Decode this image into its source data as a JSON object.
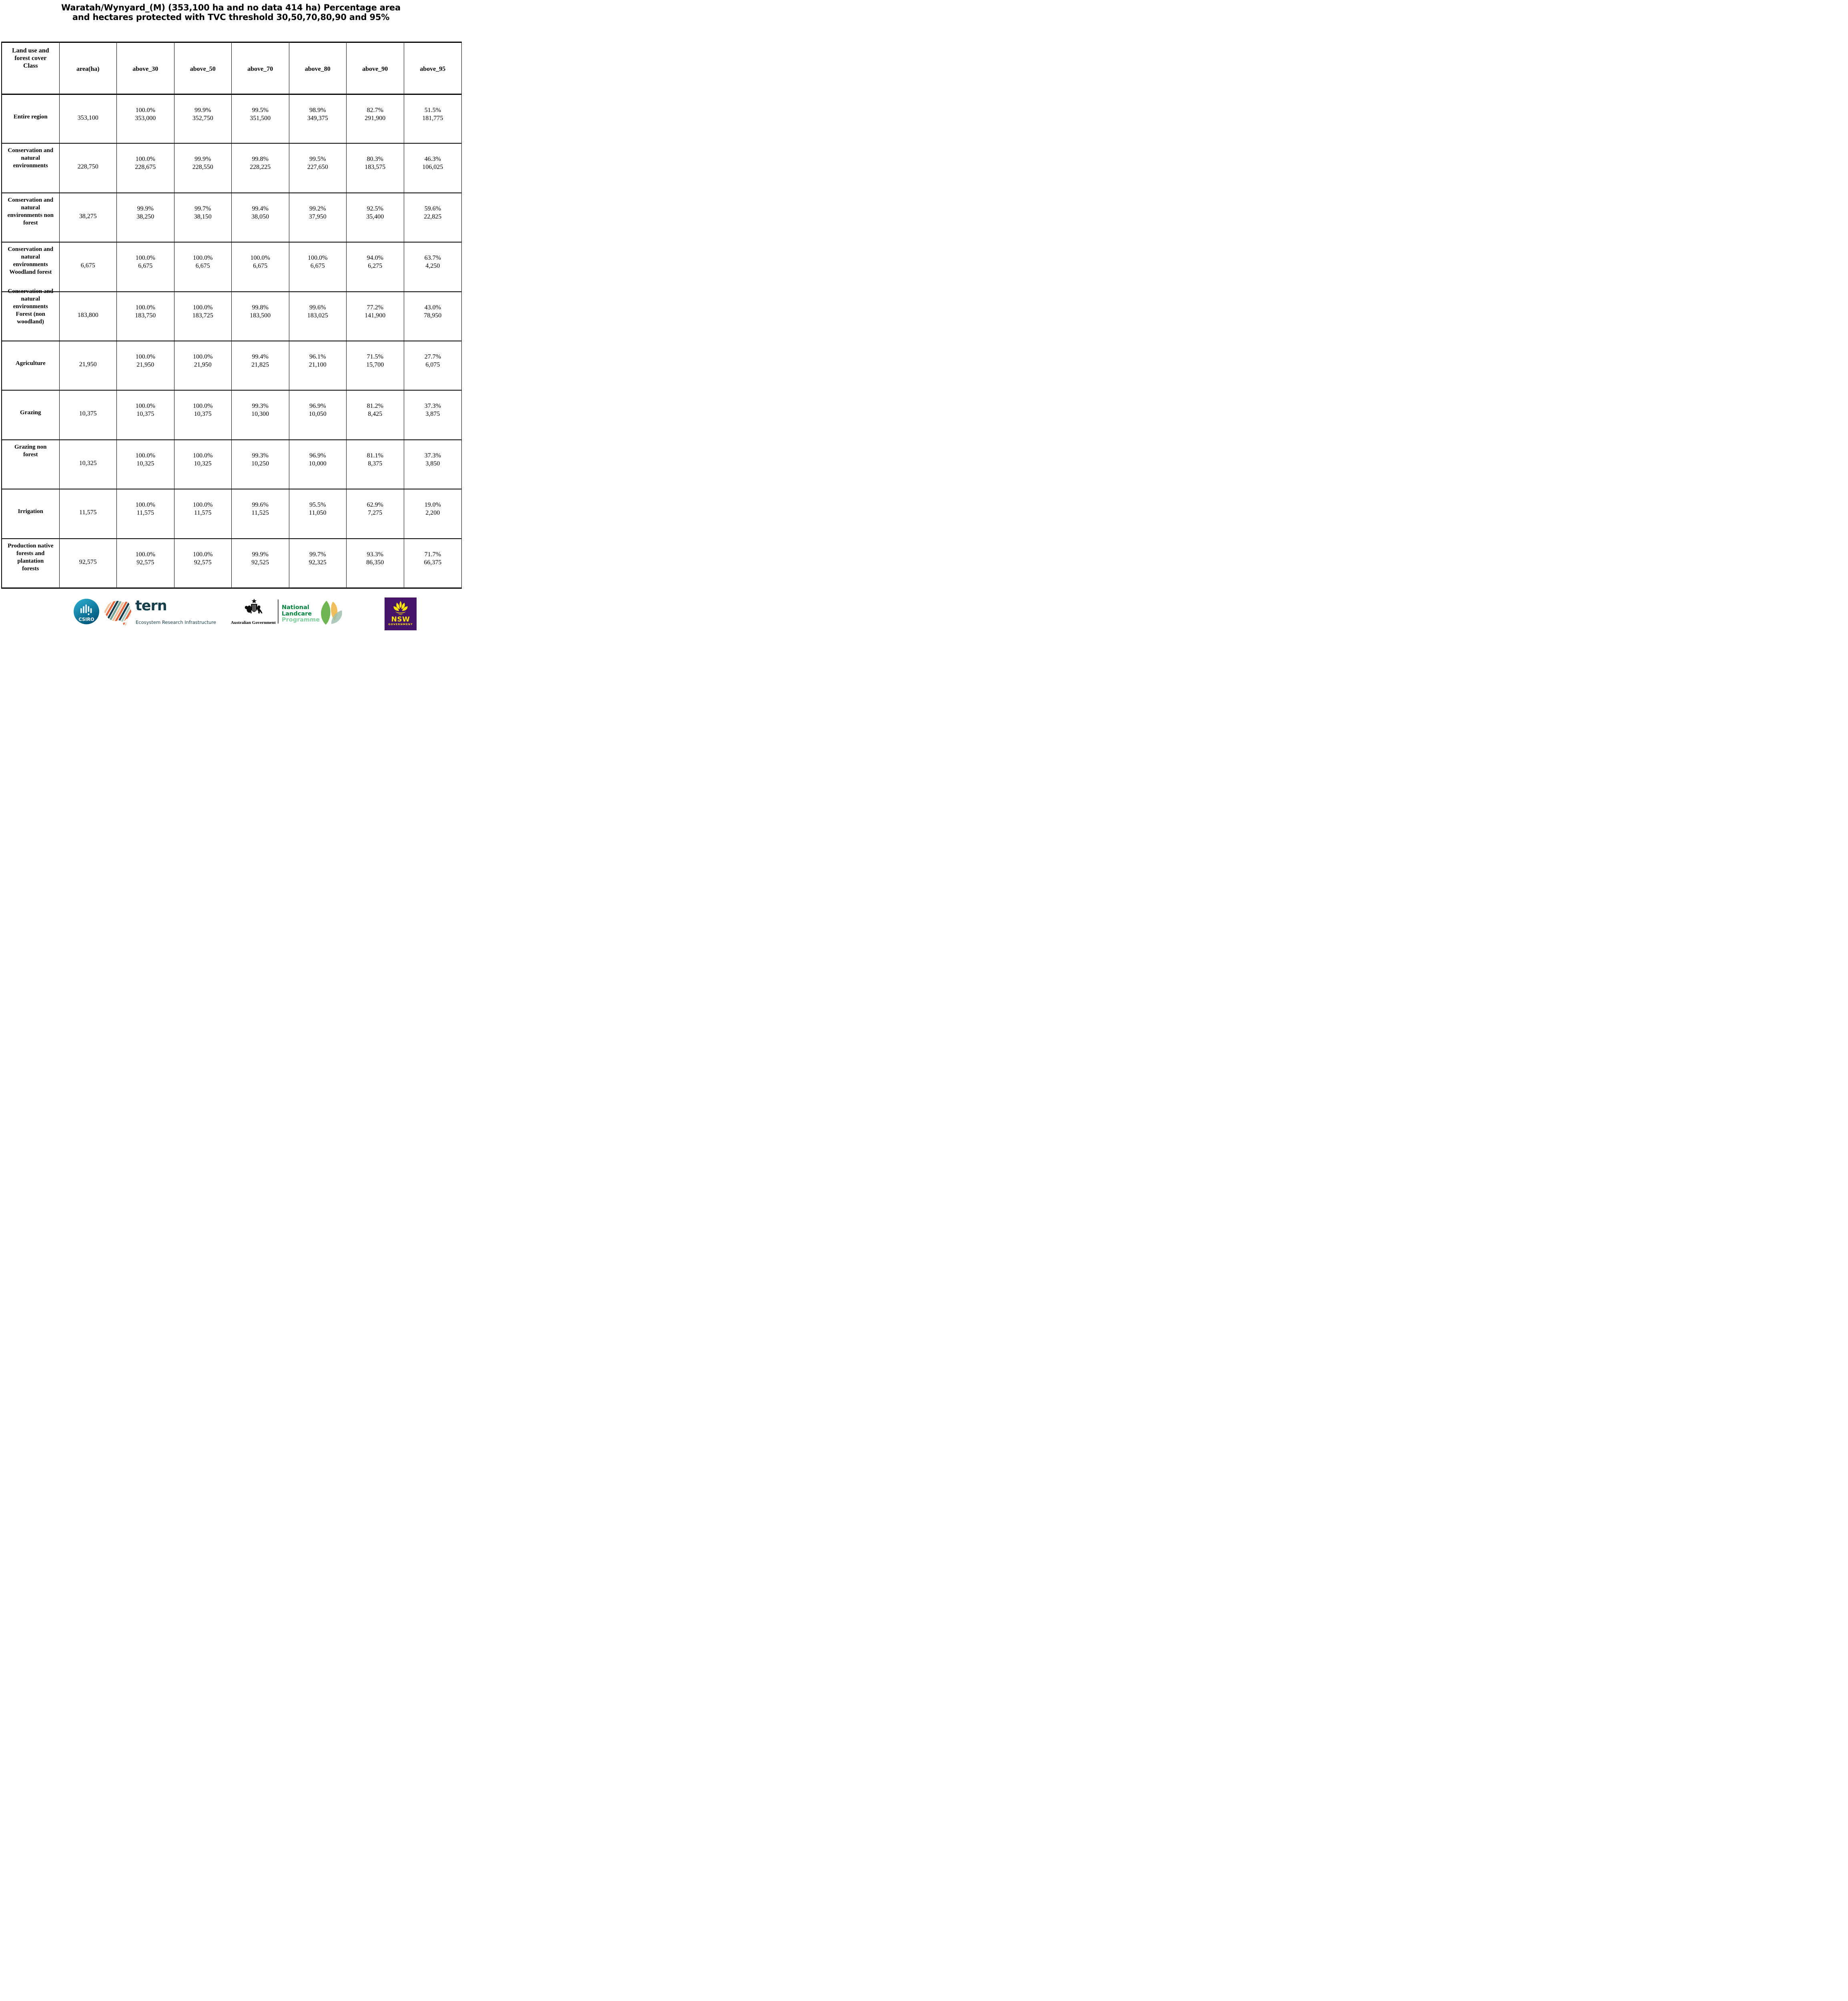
{
  "title": {
    "line1": "Waratah/Wynyard_(M) (353,100 ha and no data 414 ha) Percentage area",
    "line2": "and hectares protected with TVC threshold 30,50,70,80,90 and 95%"
  },
  "table": {
    "header": {
      "class_col": "Land use and\nforest cover\nClass",
      "cols": [
        "area(ha)",
        "above_30",
        "above_50",
        "above_70",
        "above_80",
        "above_90",
        "above_95"
      ]
    },
    "rows": [
      {
        "label": "Entire region",
        "area": "353,100",
        "pairs": [
          [
            "100.0%",
            "353,000"
          ],
          [
            "99.9%",
            "352,750"
          ],
          [
            "99.5%",
            "351,500"
          ],
          [
            "98.9%",
            "349,375"
          ],
          [
            "82.7%",
            "291,900"
          ],
          [
            "51.5%",
            "181,775"
          ]
        ]
      },
      {
        "label": "Conservation and\nnatural\nenvironments",
        "area": "228,750",
        "pairs": [
          [
            "100.0%",
            "228,675"
          ],
          [
            "99.9%",
            "228,550"
          ],
          [
            "99.8%",
            "228,225"
          ],
          [
            "99.5%",
            "227,650"
          ],
          [
            "80.3%",
            "183,575"
          ],
          [
            "46.3%",
            "106,025"
          ]
        ]
      },
      {
        "label": "Conservation and\nnatural\nenvironments non\nforest",
        "area": "38,275",
        "pairs": [
          [
            "99.9%",
            "38,250"
          ],
          [
            "99.7%",
            "38,150"
          ],
          [
            "99.4%",
            "38,050"
          ],
          [
            "99.2%",
            "37,950"
          ],
          [
            "92.5%",
            "35,400"
          ],
          [
            "59.6%",
            "22,825"
          ]
        ]
      },
      {
        "label": "Conservation and\nnatural\nenvironments\nWoodland forest",
        "area": "6,675",
        "pairs": [
          [
            "100.0%",
            "6,675"
          ],
          [
            "100.0%",
            "6,675"
          ],
          [
            "100.0%",
            "6,675"
          ],
          [
            "100.0%",
            "6,675"
          ],
          [
            "94.0%",
            "6,275"
          ],
          [
            "63.7%",
            "4,250"
          ]
        ]
      },
      {
        "label": "Conservation and\nnatural\nenvironments\nForest (non\nwoodland)",
        "area": "183,800",
        "pairs": [
          [
            "100.0%",
            "183,750"
          ],
          [
            "100.0%",
            "183,725"
          ],
          [
            "99.8%",
            "183,500"
          ],
          [
            "99.6%",
            "183,025"
          ],
          [
            "77.2%",
            "141,900"
          ],
          [
            "43.0%",
            "78,950"
          ]
        ]
      },
      {
        "label": "Agriculture",
        "area": "21,950",
        "pairs": [
          [
            "100.0%",
            "21,950"
          ],
          [
            "100.0%",
            "21,950"
          ],
          [
            "99.4%",
            "21,825"
          ],
          [
            "96.1%",
            "21,100"
          ],
          [
            "71.5%",
            "15,700"
          ],
          [
            "27.7%",
            "6,075"
          ]
        ]
      },
      {
        "label": "Grazing",
        "area": "10,375",
        "pairs": [
          [
            "100.0%",
            "10,375"
          ],
          [
            "100.0%",
            "10,375"
          ],
          [
            "99.3%",
            "10,300"
          ],
          [
            "96.9%",
            "10,050"
          ],
          [
            "81.2%",
            "8,425"
          ],
          [
            "37.3%",
            "3,875"
          ]
        ]
      },
      {
        "label": "Grazing non\nforest",
        "area": "10,325",
        "pairs": [
          [
            "100.0%",
            "10,325"
          ],
          [
            "100.0%",
            "10,325"
          ],
          [
            "99.3%",
            "10,250"
          ],
          [
            "96.9%",
            "10,000"
          ],
          [
            "81.1%",
            "8,375"
          ],
          [
            "37.3%",
            "3,850"
          ]
        ]
      },
      {
        "label": "Irrigation",
        "area": "11,575",
        "pairs": [
          [
            "100.0%",
            "11,575"
          ],
          [
            "100.0%",
            "11,575"
          ],
          [
            "99.6%",
            "11,525"
          ],
          [
            "95.5%",
            "11,050"
          ],
          [
            "62.9%",
            "7,275"
          ],
          [
            "19.0%",
            "2,200"
          ]
        ]
      },
      {
        "label": "Production native\nforests and\nplantation\nforests",
        "area": "92,575",
        "pairs": [
          [
            "100.0%",
            "92,575"
          ],
          [
            "100.0%",
            "92,575"
          ],
          [
            "99.9%",
            "92,525"
          ],
          [
            "99.7%",
            "92,325"
          ],
          [
            "93.3%",
            "86,350"
          ],
          [
            "71.7%",
            "66,375"
          ]
        ]
      }
    ]
  },
  "footer": {
    "csiro": {
      "label": "CSIRO"
    },
    "tern": {
      "word": "tern",
      "tagline": "Ecosystem Research Infrastructure"
    },
    "ausgov": {
      "label": "Australian Government"
    },
    "nlp": {
      "line1": "National",
      "line2": "Landcare",
      "line3": "Programme"
    },
    "nsw": {
      "label": "NSW",
      "sub": "GOVERNMENT"
    }
  },
  "colors": {
    "tern_teal": "#173f4b",
    "nlp_green": "#00843d",
    "nlp_light_green": "#7fcf9b",
    "nsw_purple": "#441468",
    "nsw_yellow": "#ffe600",
    "csiro_light": "#2fb3d4",
    "csiro_dark": "#00577c",
    "leaf_green": "#5fae3f",
    "leaf_gold": "#eeb33f",
    "leaf_sage": "#9dbfae"
  }
}
